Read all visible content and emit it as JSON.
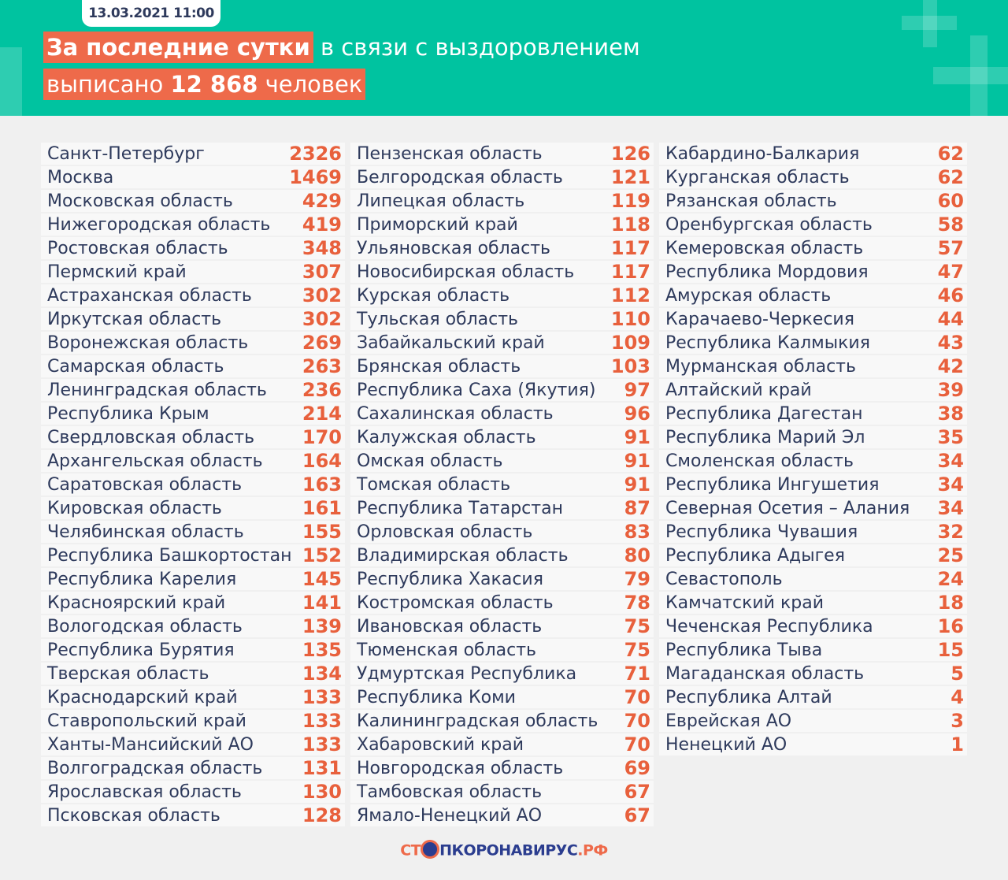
{
  "header": {
    "date": "13.03.2021 11:00",
    "line1_highlight": "За последние сутки",
    "line1_rest": "в связи с выздоровлением",
    "line2_pre": "выписано",
    "line2_number": "12 868",
    "line2_post": "человек",
    "colors": {
      "background": "#00c3a0",
      "highlight": "#ee6a4a"
    }
  },
  "columns": [
    [
      [
        "Санкт-Петербург",
        "2326"
      ],
      [
        "Москва",
        "1469"
      ],
      [
        "Московская область",
        "429"
      ],
      [
        "Нижегородская область",
        "419"
      ],
      [
        "Ростовская область",
        "348"
      ],
      [
        "Пермский край",
        "307"
      ],
      [
        "Астраханская область",
        "302"
      ],
      [
        "Иркутская область",
        "302"
      ],
      [
        "Воронежская область",
        "269"
      ],
      [
        "Самарская область",
        "263"
      ],
      [
        "Ленинградская область",
        "236"
      ],
      [
        "Республика Крым",
        "214"
      ],
      [
        "Свердловская область",
        "170"
      ],
      [
        "Архангельская область",
        "164"
      ],
      [
        "Саратовская область",
        "163"
      ],
      [
        "Кировская область",
        "161"
      ],
      [
        "Челябинская область",
        "155"
      ],
      [
        "Республика Башкортостан",
        "152"
      ],
      [
        "Республика Карелия",
        "145"
      ],
      [
        "Красноярский край",
        "141"
      ],
      [
        "Вологодская область",
        "139"
      ],
      [
        "Республика Бурятия",
        "135"
      ],
      [
        "Тверская область",
        "134"
      ],
      [
        "Краснодарский край",
        "133"
      ],
      [
        "Ставропольский край",
        "133"
      ],
      [
        "Ханты-Мансийский АО",
        "133"
      ],
      [
        "Волгоградская область",
        "131"
      ],
      [
        "Ярославская область",
        "130"
      ],
      [
        "Псковская область",
        "128"
      ]
    ],
    [
      [
        "Пензенская область",
        "126"
      ],
      [
        "Белгородская область",
        "121"
      ],
      [
        "Липецкая область",
        "119"
      ],
      [
        "Приморский край",
        "118"
      ],
      [
        "Ульяновская область",
        "117"
      ],
      [
        "Новосибирская область",
        "117"
      ],
      [
        "Курская область",
        "112"
      ],
      [
        "Тульская область",
        "110"
      ],
      [
        "Забайкальский край",
        "109"
      ],
      [
        "Брянская область",
        "103"
      ],
      [
        "Республика Саха (Якутия)",
        "97"
      ],
      [
        "Сахалинская область",
        "96"
      ],
      [
        "Калужская область",
        "91"
      ],
      [
        "Омская область",
        "91"
      ],
      [
        "Томская область",
        "91"
      ],
      [
        "Республика Татарстан",
        "87"
      ],
      [
        "Орловская область",
        "83"
      ],
      [
        "Владимирская область",
        "80"
      ],
      [
        "Республика Хакасия",
        "79"
      ],
      [
        "Костромская область",
        "78"
      ],
      [
        "Ивановская область",
        "75"
      ],
      [
        "Тюменская область",
        "75"
      ],
      [
        "Удмуртская Республика",
        "71"
      ],
      [
        "Республика Коми",
        "70"
      ],
      [
        "Калининградская область",
        "70"
      ],
      [
        "Хабаровский край",
        "70"
      ],
      [
        "Новгородская область",
        "69"
      ],
      [
        "Тамбовская область",
        "67"
      ],
      [
        "Ямало-Ненецкий АО",
        "67"
      ]
    ],
    [
      [
        "Кабардино-Балкария",
        "62"
      ],
      [
        "Курганская область",
        "62"
      ],
      [
        "Рязанская область",
        "60"
      ],
      [
        "Оренбургская область",
        "58"
      ],
      [
        "Кемеровская область",
        "57"
      ],
      [
        "Республика Мордовия",
        "47"
      ],
      [
        "Амурская область",
        "46"
      ],
      [
        "Карачаево-Черкесия",
        "44"
      ],
      [
        "Республика Калмыкия",
        "43"
      ],
      [
        "Мурманская область",
        "42"
      ],
      [
        "Алтайский край",
        "39"
      ],
      [
        "Республика Дагестан",
        "38"
      ],
      [
        "Республика Марий Эл",
        "35"
      ],
      [
        "Смоленская область",
        "34"
      ],
      [
        "Республика Ингушетия",
        "34"
      ],
      [
        "Северная Осетия – Алания",
        "34"
      ],
      [
        "Республика Чувашия",
        "32"
      ],
      [
        "Республика Адыгея",
        "25"
      ],
      [
        "Севастополь",
        "24"
      ],
      [
        "Камчатский край",
        "18"
      ],
      [
        "Чеченская Республика",
        "16"
      ],
      [
        "Республика Тыва",
        "15"
      ],
      [
        "Магаданская область",
        "5"
      ],
      [
        "Республика Алтай",
        "4"
      ],
      [
        "Еврейская АО",
        "3"
      ],
      [
        "Ненецкий АО",
        "1"
      ]
    ]
  ],
  "footer": {
    "logo_part1": "СТ",
    "logo_icon": "virus-crossed-icon",
    "logo_part2": "ПКОРОНАВИРУС",
    "logo_part3": ".РФ"
  },
  "colors": {
    "number": "#e8603c",
    "text": "#2e3a5c"
  }
}
